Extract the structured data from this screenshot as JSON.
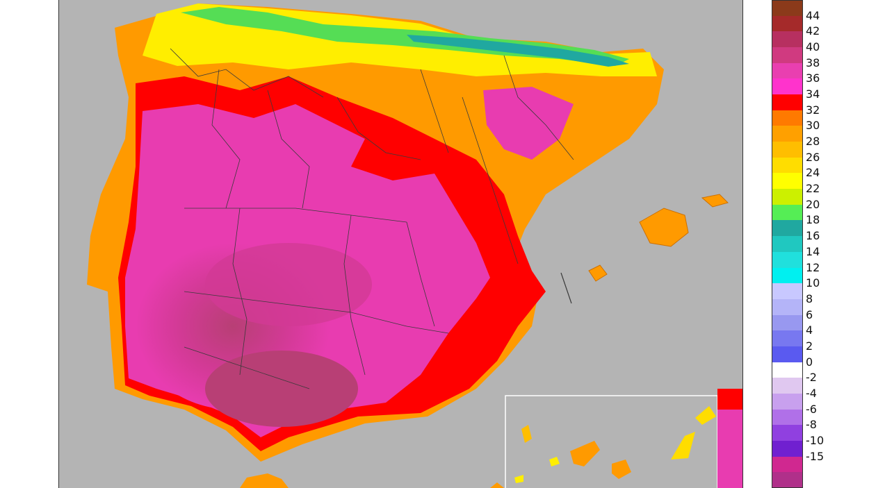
{
  "map": {
    "regions": [
      "Iberian Peninsula",
      "Balearic Islands",
      "Canary Islands"
    ],
    "colors": {
      "background": "#b4b4b4",
      "boundary": "#3a3a3a",
      "peak": "#c0306a",
      "hot": "#e83cb0",
      "red": "#f00000",
      "orange": "#ff8800",
      "yellow": "#ffee00",
      "green": "#55dd55",
      "teal": "#20a8a0"
    }
  },
  "legend": {
    "entries": [
      {
        "label": "44",
        "color": "#8b3a1a"
      },
      {
        "label": "42",
        "color": "#a52a2a"
      },
      {
        "label": "40",
        "color": "#b73060"
      },
      {
        "label": "38",
        "color": "#d03a80"
      },
      {
        "label": "36",
        "color": "#e93fb0"
      },
      {
        "label": "34",
        "color": "#ff33cc"
      },
      {
        "label": "32",
        "color": "#ff0000"
      },
      {
        "label": "30",
        "color": "#ff7a00"
      },
      {
        "label": "28",
        "color": "#ffa000"
      },
      {
        "label": "26",
        "color": "#ffbe00"
      },
      {
        "label": "24",
        "color": "#ffdd00"
      },
      {
        "label": "22",
        "color": "#ffff00"
      },
      {
        "label": "20",
        "color": "#ccf000"
      },
      {
        "label": "18",
        "color": "#55ee55"
      },
      {
        "label": "16",
        "color": "#20a8a0"
      },
      {
        "label": "14",
        "color": "#20c8c0"
      },
      {
        "label": "12",
        "color": "#20e0dd"
      },
      {
        "label": "10",
        "color": "#00f0f0"
      },
      {
        "label": "8",
        "color": "#c8c8ff"
      },
      {
        "label": "6",
        "color": "#b4b4f8"
      },
      {
        "label": "4",
        "color": "#9898f0"
      },
      {
        "label": "2",
        "color": "#7878f0"
      },
      {
        "label": "0",
        "color": "#5a5af0"
      },
      {
        "label": "-2",
        "color": "#ffffff"
      },
      {
        "label": "-4",
        "color": "#e0c8f0"
      },
      {
        "label": "-6",
        "color": "#c8a0ee"
      },
      {
        "label": "-8",
        "color": "#b070e8"
      },
      {
        "label": "-10",
        "color": "#9040e0"
      },
      {
        "label": "-15",
        "color": "#7020d0"
      },
      {
        "label": "",
        "color": "#d02890"
      },
      {
        "label": "",
        "color": "#b0308a"
      }
    ]
  }
}
